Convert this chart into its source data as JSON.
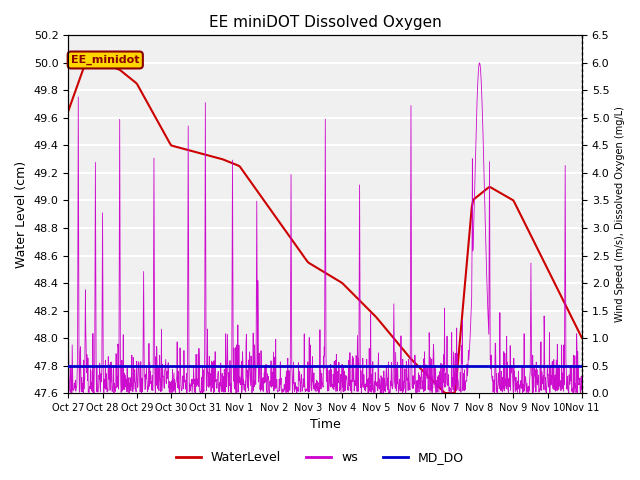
{
  "title": "EE miniDOT Dissolved Oxygen",
  "xlabel": "Time",
  "ylabel_left": "Water Level (cm)",
  "ylabel_right": "Wind Speed (m/s), Dissolved Oxygen (mg/L)",
  "ylim_left": [
    47.6,
    50.2
  ],
  "ylim_right": [
    0.0,
    6.5
  ],
  "xtick_labels": [
    "Oct 27",
    "Oct 28",
    "Oct 29",
    "Oct 30",
    "Oct 31",
    "Nov 1",
    "Nov 2",
    "Nov 3",
    "Nov 4",
    "Nov 5",
    "Nov 6",
    "Nov 7",
    "Nov 8",
    "Nov 9",
    "Nov 10",
    "Nov 11"
  ],
  "annotation_text": "EE_minidot",
  "annotation_color": "#8B0000",
  "annotation_bg": "#FFD700",
  "wl_color": "#CC0000",
  "ws_color": "#CC00CC",
  "do_color": "#0000CC",
  "background_color": "#F0F0F0",
  "grid_color": "#FFFFFF",
  "legend_labels": [
    "WaterLevel",
    "ws",
    "MD_DO"
  ]
}
